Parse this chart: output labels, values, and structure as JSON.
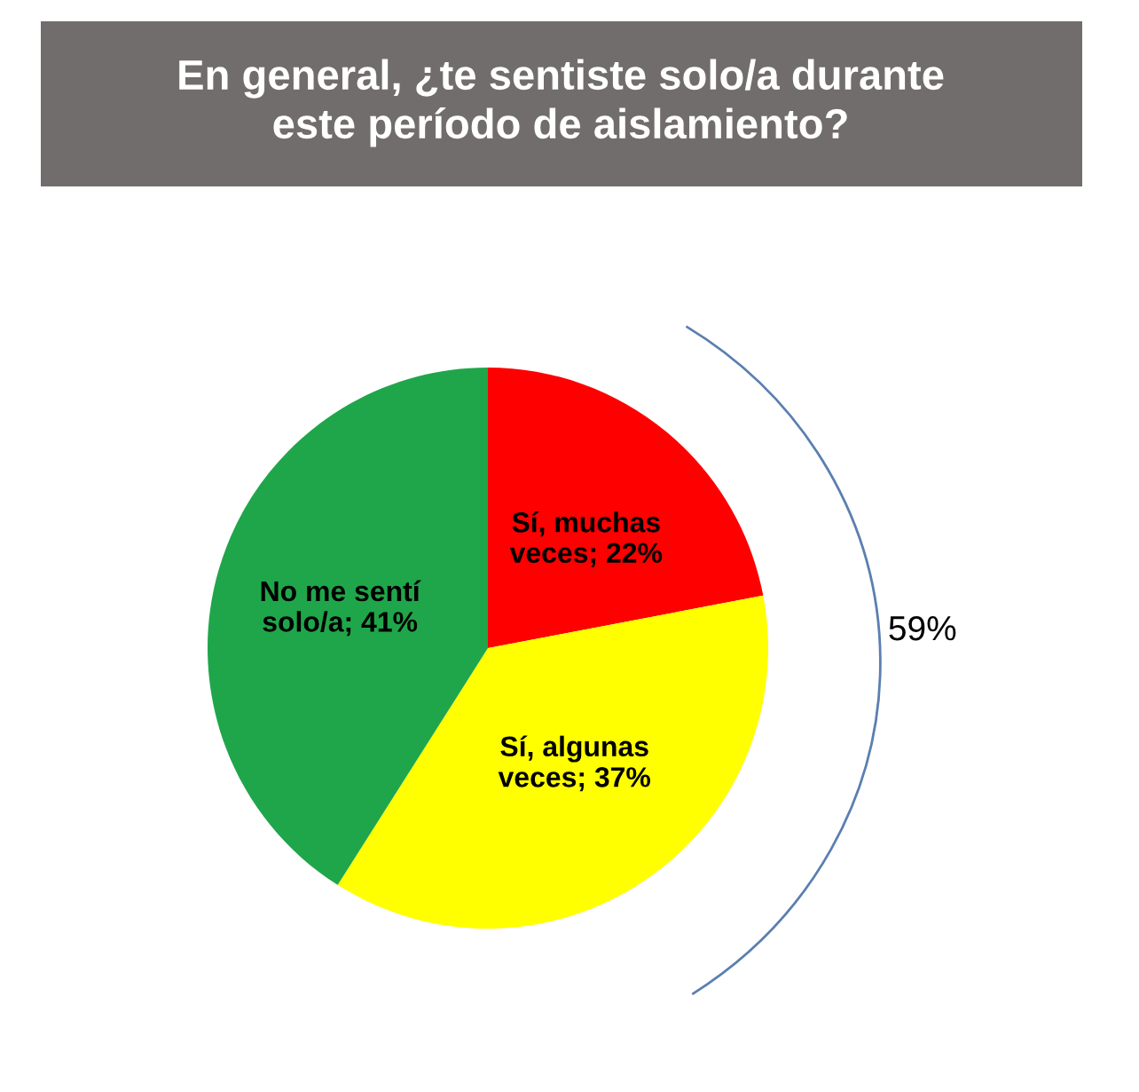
{
  "chart_data": {
    "type": "pie",
    "title": "En general, ¿te sentiste solo/a durante\neste período de aislamiento?",
    "categories": [
      "Sí, muchas veces",
      "Sí, algunas veces",
      "No me sentí solo/a"
    ],
    "values": [
      22,
      37,
      41
    ],
    "colors": [
      "#ff0000",
      "#ffff00",
      "#1fa64a"
    ],
    "value_labels": [
      "22%",
      "37%",
      "41%"
    ],
    "annotations": [
      "59%"
    ]
  }
}
